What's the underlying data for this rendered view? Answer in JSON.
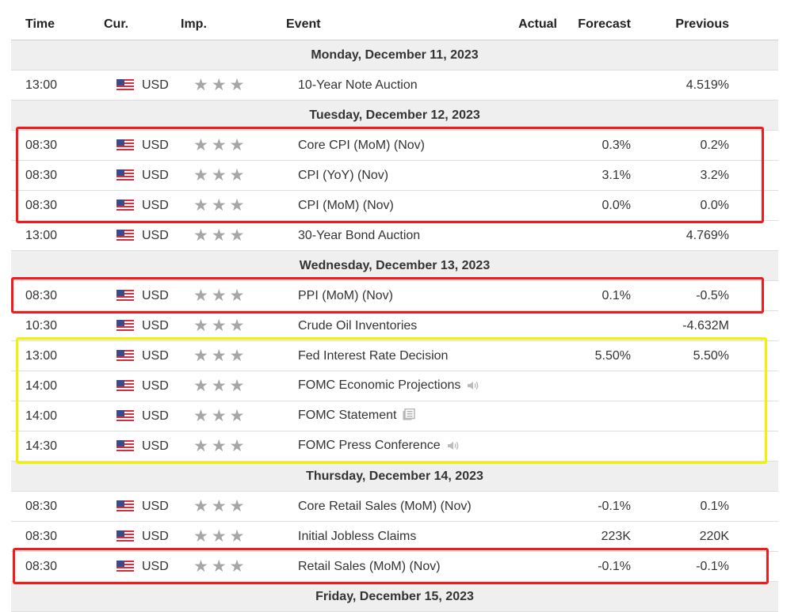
{
  "headers": {
    "time": "Time",
    "currency": "Cur.",
    "importance": "Imp.",
    "event": "Event",
    "actual": "Actual",
    "forecast": "Forecast",
    "previous": "Previous"
  },
  "days": [
    {
      "date": "Monday, December 11, 2023",
      "events": [
        {
          "time": "13:00",
          "currency": "USD",
          "event": "10-Year Note Auction",
          "actual": "",
          "forecast": "",
          "previous": "4.519%",
          "icon": ""
        }
      ]
    },
    {
      "date": "Tuesday, December 12, 2023",
      "events": [
        {
          "time": "08:30",
          "currency": "USD",
          "event": "Core CPI (MoM) (Nov)",
          "actual": "",
          "forecast": "0.3%",
          "previous": "0.2%",
          "icon": ""
        },
        {
          "time": "08:30",
          "currency": "USD",
          "event": "CPI (YoY) (Nov)",
          "actual": "",
          "forecast": "3.1%",
          "previous": "3.2%",
          "icon": ""
        },
        {
          "time": "08:30",
          "currency": "USD",
          "event": "CPI (MoM) (Nov)",
          "actual": "",
          "forecast": "0.0%",
          "previous": "0.0%",
          "icon": ""
        },
        {
          "time": "13:00",
          "currency": "USD",
          "event": "30-Year Bond Auction",
          "actual": "",
          "forecast": "",
          "previous": "4.769%",
          "icon": ""
        }
      ]
    },
    {
      "date": "Wednesday, December 13, 2023",
      "events": [
        {
          "time": "08:30",
          "currency": "USD",
          "event": "PPI (MoM) (Nov)",
          "actual": "",
          "forecast": "0.1%",
          "previous": "-0.5%",
          "icon": ""
        },
        {
          "time": "10:30",
          "currency": "USD",
          "event": "Crude Oil Inventories",
          "actual": "",
          "forecast": "",
          "previous": "-4.632M",
          "icon": ""
        },
        {
          "time": "13:00",
          "currency": "USD",
          "event": "Fed Interest Rate Decision",
          "actual": "",
          "forecast": "5.50%",
          "previous": "5.50%",
          "icon": ""
        },
        {
          "time": "14:00",
          "currency": "USD",
          "event": "FOMC Economic Projections",
          "actual": "",
          "forecast": "",
          "previous": "",
          "icon": "speaker-icon"
        },
        {
          "time": "14:00",
          "currency": "USD",
          "event": "FOMC Statement",
          "actual": "",
          "forecast": "",
          "previous": "",
          "icon": "document-icon"
        },
        {
          "time": "14:30",
          "currency": "USD",
          "event": "FOMC Press Conference",
          "actual": "",
          "forecast": "",
          "previous": "",
          "icon": "speaker-icon"
        }
      ]
    },
    {
      "date": "Thursday, December 14, 2023",
      "events": [
        {
          "time": "08:30",
          "currency": "USD",
          "event": "Core Retail Sales (MoM) (Nov)",
          "actual": "",
          "forecast": "-0.1%",
          "previous": "0.1%",
          "icon": ""
        },
        {
          "time": "08:30",
          "currency": "USD",
          "event": "Initial Jobless Claims",
          "actual": "",
          "forecast": "223K",
          "previous": "220K",
          "icon": ""
        },
        {
          "time": "08:30",
          "currency": "USD",
          "event": "Retail Sales (MoM) (Nov)",
          "actual": "",
          "forecast": "-0.1%",
          "previous": "-0.1%",
          "icon": ""
        }
      ]
    },
    {
      "date": "Friday, December 15, 2023",
      "events": []
    }
  ],
  "importance_stars": 3,
  "colors": {
    "highlight_red": "#f21a1a",
    "highlight_yellow": "#f2f200",
    "star_gray": "#a6a6a6",
    "date_row_bg": "#efefef"
  }
}
